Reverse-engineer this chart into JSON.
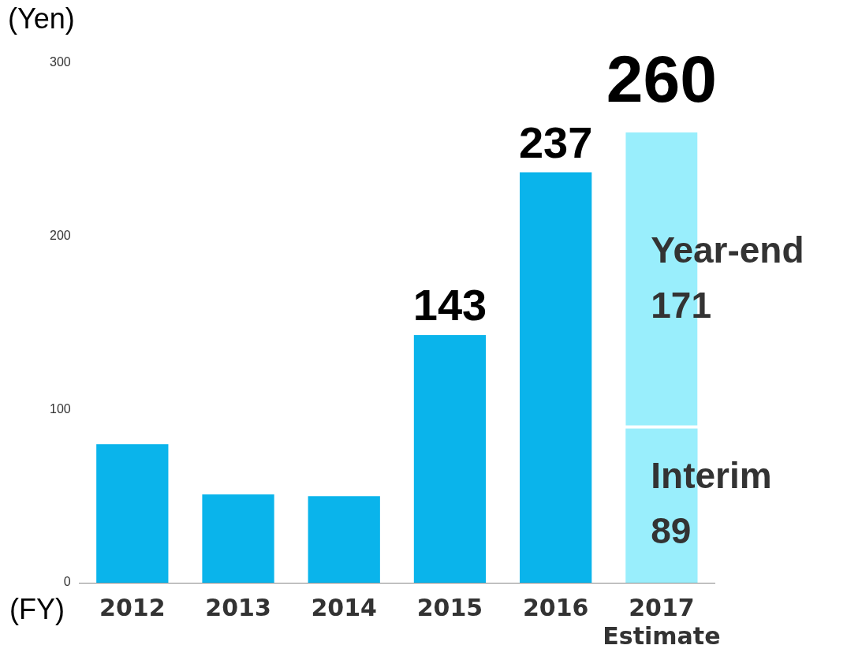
{
  "chart_data": {
    "type": "bar",
    "stacked": true,
    "ylabel": "(Yen)",
    "xlabel": "(FY)",
    "categories": [
      "2012",
      "2013",
      "2014",
      "2015",
      "2016",
      "2017\nEstimate"
    ],
    "series": [
      {
        "color": "#0ab4eb",
        "values": [
          80,
          51,
          50,
          143,
          237,
          null
        ],
        "value_labels": [
          null,
          null,
          null,
          "143",
          "237",
          null
        ]
      },
      {
        "name": "Interim",
        "color": "#99eefc",
        "values": [
          null,
          null,
          null,
          null,
          null,
          89
        ],
        "value_labels": [
          null,
          null,
          null,
          null,
          null,
          "89"
        ]
      },
      {
        "name": "Year-end",
        "color": "#99eefc",
        "values": [
          null,
          null,
          null,
          null,
          null,
          171
        ],
        "value_labels": [
          null,
          null,
          null,
          null,
          null,
          "171"
        ]
      }
    ],
    "totals": [
      null,
      null,
      null,
      null,
      null,
      "260"
    ],
    "ylim": [
      0,
      300
    ],
    "yticks": [
      0,
      100,
      200,
      300
    ],
    "grid": false,
    "legend": false
  }
}
